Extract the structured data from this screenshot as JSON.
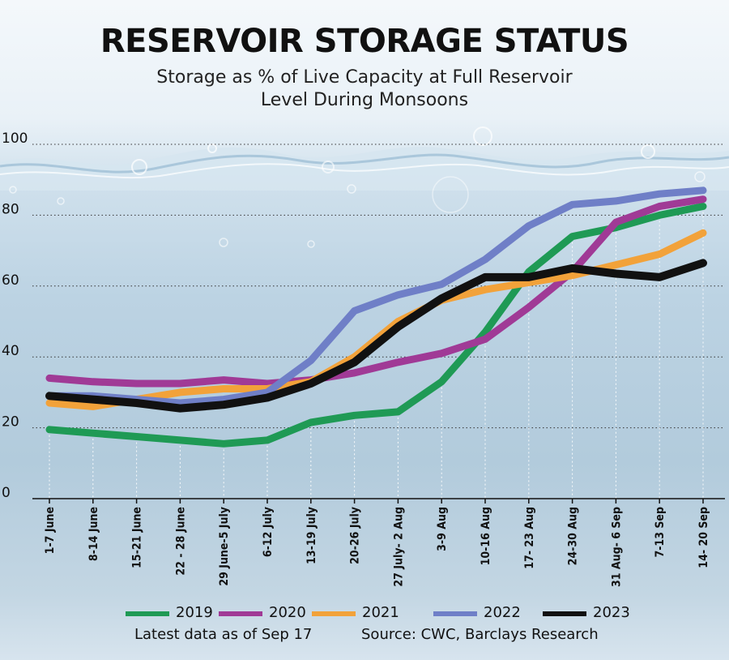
{
  "chart_data": {
    "type": "line",
    "title": "RESERVOIR STORAGE STATUS",
    "subtitle_line1": "Storage as % of Live Capacity at Full Reservoir",
    "subtitle_line2": "Level During Monsoons",
    "x": [
      "1-7 June",
      "8-14 June",
      "15-21 June",
      "22 - 28 June",
      "29 June-5 July",
      "6-12 July",
      "13-19 July",
      "20-26 July",
      "27 July- 2 Aug",
      "3-9 Aug",
      "10-16 Aug",
      "17- 23 Aug",
      "24-30 Aug",
      "31 Aug- 6 Sep",
      "7-13 Sep",
      "14- 20 Sep"
    ],
    "ylim": [
      0,
      100
    ],
    "yticks": [
      0,
      20,
      40,
      60,
      80,
      100
    ],
    "grid": "horizontal dotted",
    "legend_position": "bottom",
    "series": [
      {
        "name": "2019",
        "color": "#1f9a55",
        "values": [
          19.5,
          18.5,
          17.5,
          16.5,
          15.5,
          16.5,
          21.5,
          23.5,
          24.5,
          33,
          47,
          64,
          74,
          76.5,
          80,
          82.5
        ]
      },
      {
        "name": "2020",
        "color": "#a03a96",
        "values": [
          34,
          33,
          32.5,
          32.5,
          33.5,
          32.5,
          33.5,
          35.5,
          38.5,
          41,
          45,
          54,
          64,
          78,
          82.5,
          84.5
        ]
      },
      {
        "name": "2021",
        "color": "#f2a23a",
        "values": [
          27,
          26,
          28,
          30,
          31,
          31,
          33,
          40,
          50,
          56,
          59,
          61,
          63,
          66,
          69,
          75
        ]
      },
      {
        "name": "2022",
        "color": "#6f7fc7",
        "values": [
          29,
          29,
          28,
          27,
          28,
          30,
          39,
          53,
          57.5,
          60.5,
          67.5,
          77,
          83,
          84,
          86,
          87
        ]
      },
      {
        "name": "2023",
        "color": "#111111",
        "values": [
          29,
          28,
          27,
          25.5,
          26.5,
          28.5,
          32.5,
          38.5,
          48.5,
          56.5,
          62.5,
          62.5,
          65,
          63.5,
          62.5,
          66.5
        ]
      }
    ]
  },
  "footnote": {
    "left": "Latest data as of Sep 17",
    "right": "Source: CWC, Barclays Research"
  }
}
